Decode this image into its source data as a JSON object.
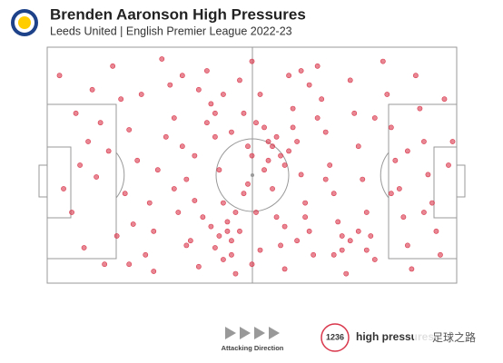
{
  "chart_data": {
    "type": "scatter",
    "title": "Brenden Aaronson High Pressures",
    "subtitle": "Leeds United | English Premier League 2022-23",
    "direction_label": "Attacking Direction",
    "total": 1236,
    "total_label": "high pressures",
    "watermark": "足球之路",
    "color": "#d9374b",
    "xlim": [
      0,
      100
    ],
    "ylim": [
      0,
      100
    ],
    "x": [
      3,
      7,
      10,
      12,
      6,
      9,
      14,
      16,
      18,
      20,
      22,
      19,
      21,
      24,
      26,
      28,
      30,
      31,
      33,
      34,
      32,
      35,
      37,
      39,
      40,
      41,
      42,
      43,
      44,
      45,
      46,
      47,
      48,
      49,
      38,
      40,
      42,
      44,
      46,
      36,
      41,
      43,
      45,
      47,
      48,
      39,
      41,
      43,
      45,
      37,
      50,
      52,
      53,
      54,
      55,
      56,
      57,
      58,
      59,
      60,
      61,
      62,
      63,
      64,
      65,
      55,
      56,
      57,
      58,
      59,
      54,
      60,
      53,
      66,
      67,
      68,
      69,
      70,
      71,
      72,
      73,
      74,
      75,
      76,
      77,
      78,
      79,
      80,
      74,
      76,
      78,
      72,
      70,
      82,
      83,
      84,
      85,
      86,
      87,
      88,
      89,
      90,
      91,
      92,
      93,
      94,
      95,
      96,
      97,
      98,
      92,
      88,
      84,
      80,
      64,
      62,
      66,
      68,
      63,
      61,
      58,
      52,
      50,
      51,
      49,
      50,
      51,
      27,
      25,
      23,
      17,
      13,
      11,
      8,
      4,
      15,
      29,
      31,
      33,
      36,
      34,
      26,
      20,
      99
    ],
    "values": [
      88,
      72,
      60,
      45,
      30,
      15,
      8,
      92,
      78,
      65,
      52,
      38,
      25,
      12,
      5,
      95,
      84,
      70,
      58,
      44,
      30,
      18,
      7,
      90,
      76,
      62,
      48,
      34,
      22,
      12,
      4,
      86,
      72,
      58,
      28,
      24,
      20,
      26,
      30,
      35,
      15,
      10,
      18,
      22,
      38,
      68,
      72,
      80,
      64,
      82,
      94,
      80,
      66,
      52,
      40,
      28,
      16,
      6,
      88,
      74,
      60,
      46,
      34,
      22,
      12,
      58,
      62,
      54,
      50,
      56,
      60,
      66,
      48,
      92,
      78,
      64,
      50,
      38,
      26,
      14,
      4,
      86,
      72,
      58,
      44,
      30,
      20,
      10,
      18,
      22,
      14,
      20,
      12,
      94,
      80,
      66,
      52,
      40,
      28,
      16,
      6,
      88,
      74,
      60,
      46,
      34,
      22,
      12,
      78,
      50,
      30,
      56,
      38,
      70,
      84,
      90,
      70,
      44,
      28,
      18,
      24,
      14,
      8,
      30,
      42,
      54,
      68,
      48,
      34,
      80,
      20,
      68,
      82,
      50,
      40,
      56,
      62,
      40,
      88,
      54,
      16,
      22,
      8,
      60
    ]
  }
}
